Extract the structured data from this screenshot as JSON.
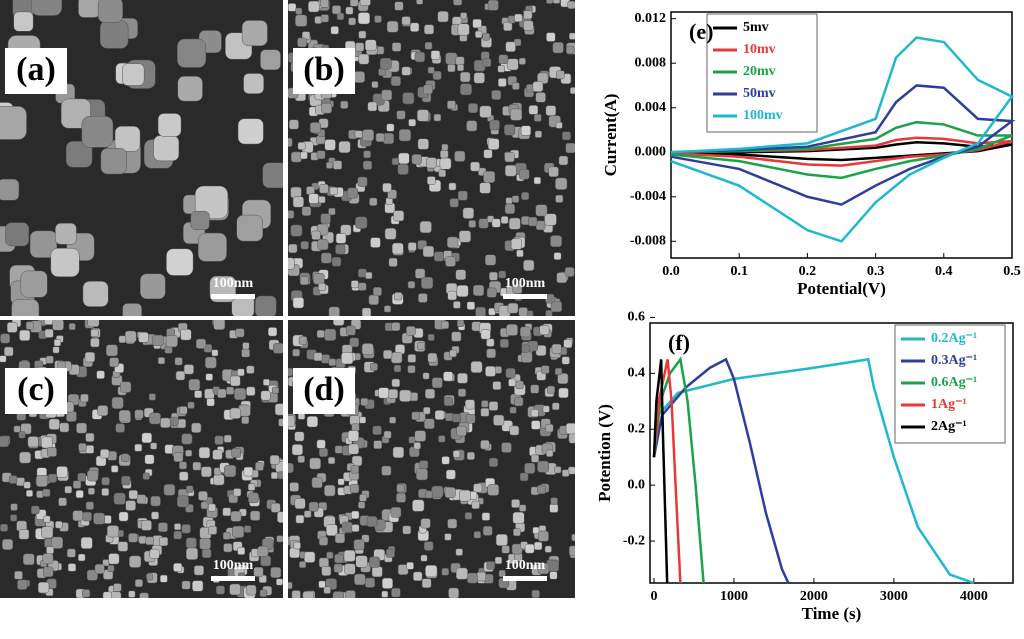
{
  "panels": [
    {
      "label": "(a)",
      "scale_bar": "100nm"
    },
    {
      "label": "(b)",
      "scale_bar": "100nm"
    },
    {
      "label": "(c)",
      "scale_bar": "100nm"
    },
    {
      "label": "(d)",
      "scale_bar": "100nm"
    }
  ],
  "chart_data": [
    {
      "type": "line",
      "annotation": "(e)",
      "xlabel": "Potential(V)",
      "ylabel": "Current(A)",
      "xlim": [
        0,
        0.5
      ],
      "xticks": [
        {
          "value": 0,
          "label": "0.0"
        },
        0.1,
        0.2,
        0.3,
        0.4,
        0.5
      ],
      "ylim": [
        -0.0095,
        0.0126
      ],
      "yticks": [
        -0.008,
        -0.004,
        {
          "value": 0,
          "label": "0.000"
        },
        0.004,
        0.008,
        0.012
      ],
      "legend": "upper left",
      "series": [
        {
          "name": "5mv",
          "color": "#000000",
          "x": [
            0,
            0.1,
            0.2,
            0.3,
            0.33,
            0.36,
            0.4,
            0.45,
            0.5,
            0.45,
            0.4,
            0.35,
            0.3,
            0.25,
            0.2,
            0.1,
            0
          ],
          "values": [
            0,
            0,
            0.0001,
            0.0004,
            0.0007,
            0.0009,
            0.0008,
            0.0005,
            0.0007,
            0.0001,
            -0.0001,
            -0.0003,
            -0.0005,
            -0.0007,
            -0.0006,
            -0.0002,
            -0.0001
          ]
        },
        {
          "name": "10mv",
          "color": "#e8393a",
          "x": [
            0,
            0.1,
            0.2,
            0.3,
            0.33,
            0.36,
            0.4,
            0.45,
            0.5,
            0.45,
            0.4,
            0.35,
            0.3,
            0.25,
            0.2,
            0.1,
            0
          ],
          "values": [
            0,
            0.0001,
            0.0002,
            0.0006,
            0.0011,
            0.0013,
            0.0012,
            0.0008,
            0.001,
            0.0002,
            -0.0002,
            -0.0004,
            -0.0008,
            -0.0012,
            -0.0011,
            -0.0004,
            -0.0001
          ]
        },
        {
          "name": "20mv",
          "color": "#1aa34a",
          "x": [
            0,
            0.1,
            0.2,
            0.3,
            0.33,
            0.36,
            0.4,
            0.45,
            0.5,
            0.45,
            0.4,
            0.35,
            0.3,
            0.25,
            0.2,
            0.1,
            0
          ],
          "values": [
            0,
            0.0001,
            0.0003,
            0.0012,
            0.0022,
            0.0027,
            0.0025,
            0.0015,
            0.0015,
            0.0003,
            -0.0003,
            -0.0008,
            -0.0015,
            -0.0023,
            -0.002,
            -0.0008,
            -0.0002
          ]
        },
        {
          "name": "50mv",
          "color": "#2f3e9e",
          "x": [
            0,
            0.1,
            0.2,
            0.3,
            0.33,
            0.36,
            0.4,
            0.45,
            0.5,
            0.45,
            0.4,
            0.35,
            0.3,
            0.25,
            0.2,
            0.1,
            0
          ],
          "values": [
            0,
            0.0002,
            0.0005,
            0.0018,
            0.0045,
            0.006,
            0.0058,
            0.003,
            0.0028,
            0.0005,
            -0.0004,
            -0.0015,
            -0.003,
            -0.0047,
            -0.004,
            -0.0015,
            -0.0004
          ]
        },
        {
          "name": "100mv",
          "color": "#1fb8cf",
          "x": [
            0,
            0.1,
            0.2,
            0.3,
            0.33,
            0.36,
            0.4,
            0.45,
            0.5,
            0.45,
            0.4,
            0.35,
            0.3,
            0.25,
            0.2,
            0.1,
            0
          ],
          "values": [
            0,
            0.0003,
            0.0008,
            0.003,
            0.0085,
            0.0103,
            0.0099,
            0.0065,
            0.005,
            0.0008,
            -0.0005,
            -0.002,
            -0.0045,
            -0.008,
            -0.007,
            -0.003,
            -0.0008
          ]
        }
      ]
    },
    {
      "type": "line",
      "annotation": "(f)",
      "xlabel": "Time (s)",
      "ylabel": "Potention (V)",
      "xlim": [
        -50,
        4490
      ],
      "xticks": [
        0,
        1000,
        2000,
        3000,
        4000
      ],
      "ylim": [
        -0.35,
        0.58
      ],
      "yticks": [
        -0.2,
        {
          "value": 0,
          "label": "0.0"
        },
        0.2,
        0.4,
        0.6
      ],
      "legend": "upper right",
      "series": [
        {
          "name": "0.2Ag⁻¹",
          "color": "#1fb8cf",
          "x": [
            0,
            50,
            300,
            1000,
            2000,
            2680,
            2750,
            3000,
            3300,
            3700,
            4000
          ],
          "values": [
            0.1,
            0.25,
            0.33,
            0.38,
            0.42,
            0.45,
            0.35,
            0.1,
            -0.15,
            -0.32,
            -0.35
          ]
        },
        {
          "name": "0.3Ag⁻¹",
          "color": "#2f3e9e",
          "x": [
            0,
            100,
            400,
            700,
            900,
            1000,
            1200,
            1400,
            1600,
            1680
          ],
          "values": [
            0.1,
            0.25,
            0.35,
            0.42,
            0.45,
            0.38,
            0.15,
            -0.1,
            -0.3,
            -0.35
          ]
        },
        {
          "name": "0.6Ag⁻¹",
          "color": "#1aa34a",
          "x": [
            0,
            80,
            200,
            330,
            420,
            520,
            620
          ],
          "values": [
            0.1,
            0.3,
            0.4,
            0.45,
            0.3,
            0,
            -0.35
          ]
        },
        {
          "name": "1Ag⁻¹",
          "color": "#e8393a",
          "x": [
            0,
            60,
            170,
            220,
            270,
            330
          ],
          "values": [
            0.1,
            0.3,
            0.45,
            0.3,
            0,
            -0.35
          ]
        },
        {
          "name": "2Ag⁻¹",
          "color": "#000000",
          "x": [
            0,
            30,
            90,
            110,
            140,
            165
          ],
          "values": [
            0.1,
            0.3,
            0.45,
            0.2,
            -0.1,
            -0.35
          ]
        }
      ]
    }
  ]
}
